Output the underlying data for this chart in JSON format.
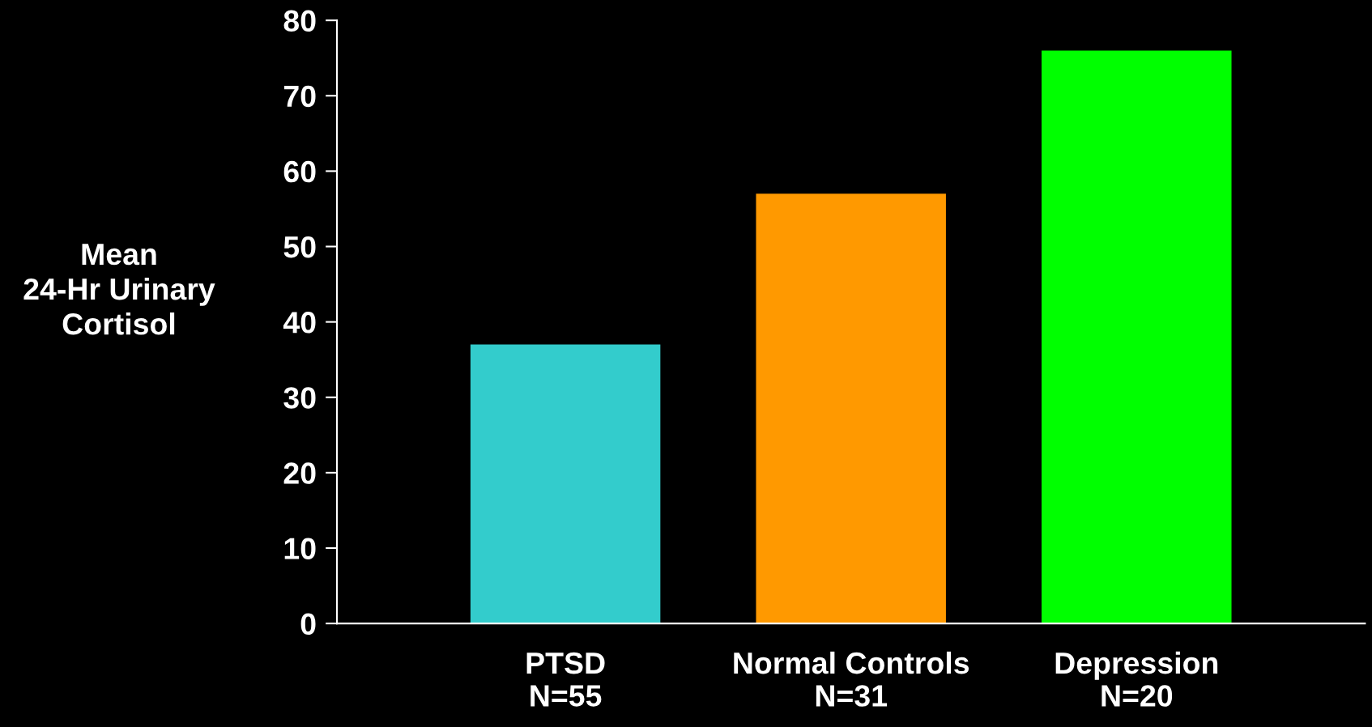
{
  "chart_data": {
    "type": "bar",
    "ylabel": "Mean\n24-Hr Urinary\nCortisol",
    "categories": [
      "PTSD\nN=55",
      "Normal Controls\nN=31",
      "Depression\nN=20"
    ],
    "values": [
      37,
      57,
      76
    ],
    "colors": [
      "#33cccc",
      "#ff9900",
      "#00ff00"
    ],
    "ylim": [
      0,
      80
    ],
    "yticks": [
      0,
      10,
      20,
      30,
      40,
      50,
      60,
      70,
      80
    ],
    "grid": false,
    "legend": false
  }
}
